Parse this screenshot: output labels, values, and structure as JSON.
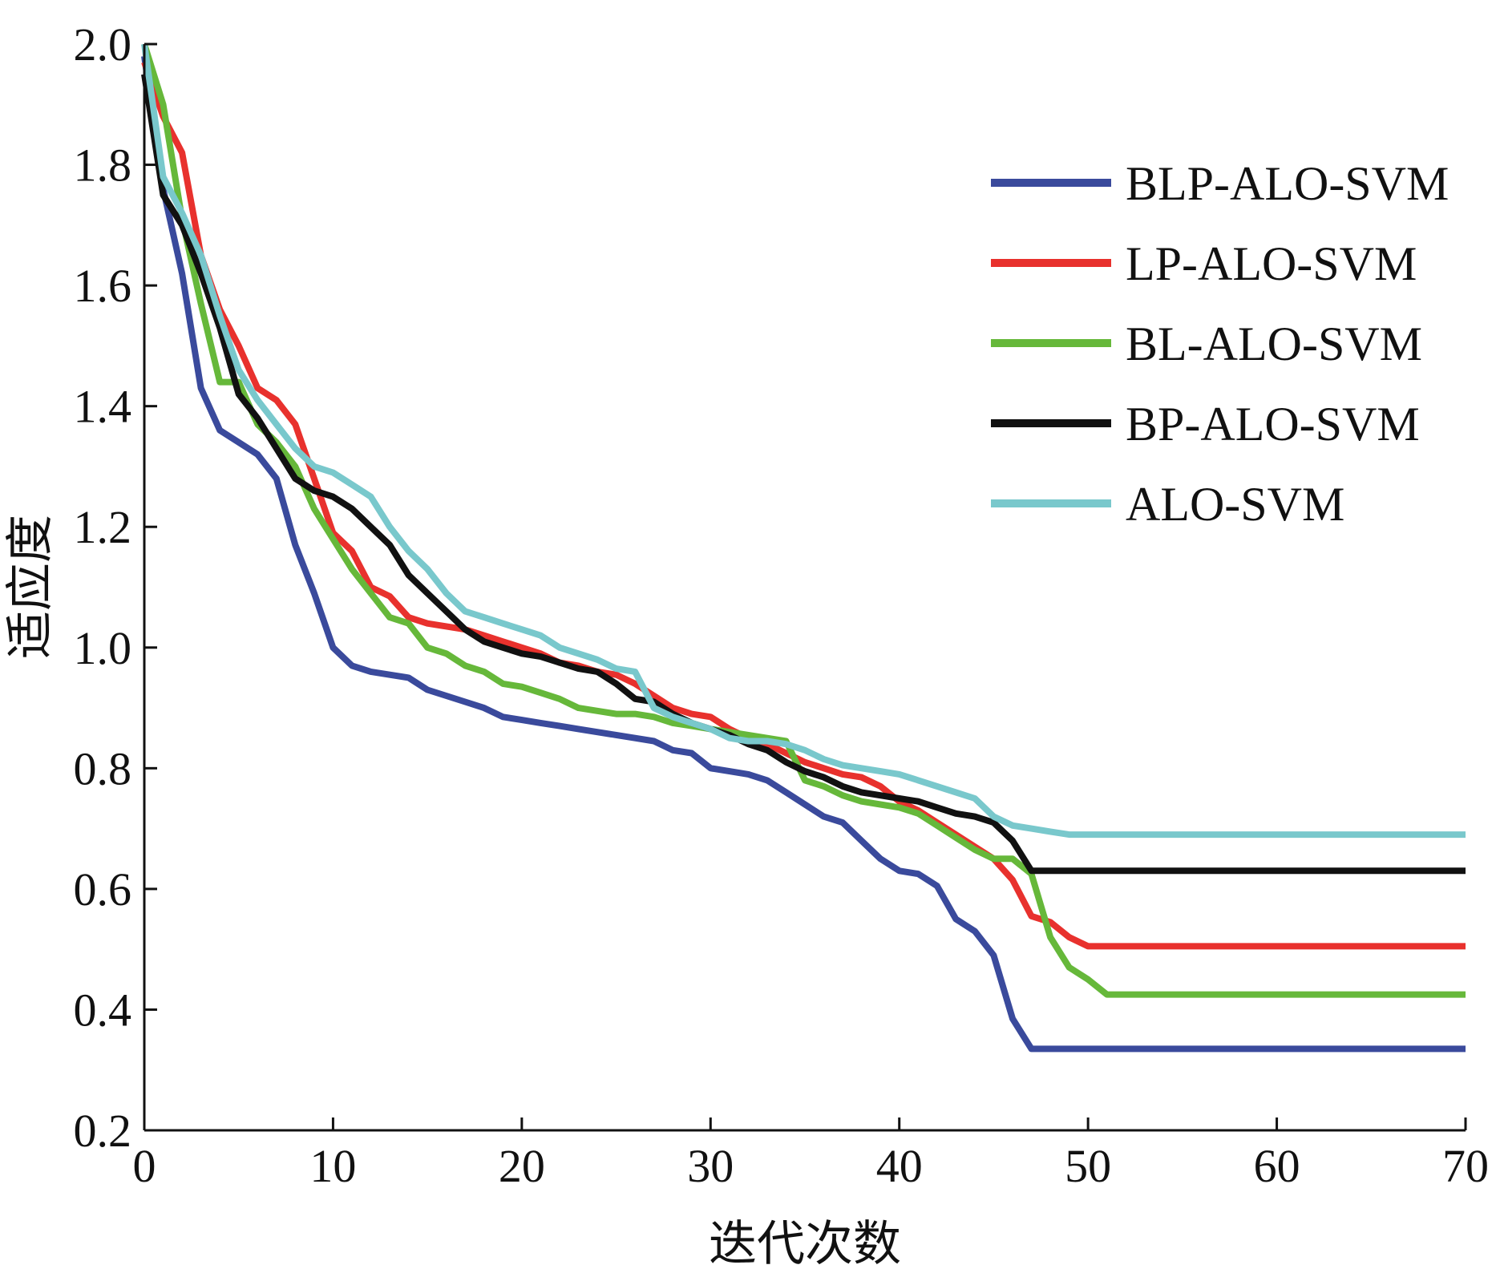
{
  "chart_data": {
    "type": "line",
    "title": "",
    "xlabel": "迭代次数",
    "ylabel": "适应度",
    "xlim": [
      0,
      70
    ],
    "ylim": [
      0.2,
      2.0
    ],
    "xticks": [
      0,
      10,
      20,
      30,
      40,
      50,
      60,
      70
    ],
    "xtick_labels": [
      "0",
      "10",
      "20",
      "30",
      "40",
      "50",
      "60",
      "70"
    ],
    "yticks": [
      0.2,
      0.4,
      0.6,
      0.8,
      1.0,
      1.2,
      1.4,
      1.6,
      1.8,
      2.0
    ],
    "ytick_labels": [
      "0.2",
      "0.4",
      "0.6",
      "0.8",
      "1.0",
      "1.2",
      "1.4",
      "1.6",
      "1.8",
      "2.0"
    ],
    "grid": false,
    "legend_position": "top-right",
    "series": [
      {
        "name": "BLP-ALO-SVM",
        "color": "#3a4a9c",
        "points": [
          [
            0,
            1.98
          ],
          [
            1,
            1.76
          ],
          [
            2,
            1.62
          ],
          [
            3,
            1.43
          ],
          [
            4,
            1.36
          ],
          [
            5,
            1.34
          ],
          [
            6,
            1.32
          ],
          [
            7,
            1.28
          ],
          [
            8,
            1.17
          ],
          [
            9,
            1.09
          ],
          [
            10,
            1.0
          ],
          [
            11,
            0.97
          ],
          [
            12,
            0.96
          ],
          [
            13,
            0.955
          ],
          [
            14,
            0.95
          ],
          [
            15,
            0.93
          ],
          [
            16,
            0.92
          ],
          [
            17,
            0.91
          ],
          [
            18,
            0.9
          ],
          [
            19,
            0.885
          ],
          [
            20,
            0.88
          ],
          [
            21,
            0.875
          ],
          [
            22,
            0.87
          ],
          [
            23,
            0.865
          ],
          [
            24,
            0.86
          ],
          [
            25,
            0.855
          ],
          [
            26,
            0.85
          ],
          [
            27,
            0.845
          ],
          [
            28,
            0.83
          ],
          [
            29,
            0.825
          ],
          [
            30,
            0.8
          ],
          [
            31,
            0.795
          ],
          [
            32,
            0.79
          ],
          [
            33,
            0.78
          ],
          [
            34,
            0.76
          ],
          [
            35,
            0.74
          ],
          [
            36,
            0.72
          ],
          [
            37,
            0.71
          ],
          [
            38,
            0.68
          ],
          [
            39,
            0.65
          ],
          [
            40,
            0.63
          ],
          [
            41,
            0.625
          ],
          [
            42,
            0.605
          ],
          [
            43,
            0.55
          ],
          [
            44,
            0.53
          ],
          [
            45,
            0.49
          ],
          [
            46,
            0.385
          ],
          [
            47,
            0.335
          ],
          [
            70,
            0.335
          ]
        ]
      },
      {
        "name": "LP-ALO-SVM",
        "color": "#e8312d",
        "points": [
          [
            0,
            1.97
          ],
          [
            1,
            1.88
          ],
          [
            2,
            1.82
          ],
          [
            3,
            1.65
          ],
          [
            4,
            1.56
          ],
          [
            5,
            1.5
          ],
          [
            6,
            1.43
          ],
          [
            7,
            1.41
          ],
          [
            8,
            1.37
          ],
          [
            9,
            1.28
          ],
          [
            10,
            1.19
          ],
          [
            11,
            1.16
          ],
          [
            12,
            1.1
          ],
          [
            13,
            1.085
          ],
          [
            14,
            1.05
          ],
          [
            15,
            1.04
          ],
          [
            16,
            1.035
          ],
          [
            17,
            1.03
          ],
          [
            18,
            1.02
          ],
          [
            19,
            1.01
          ],
          [
            20,
            1.0
          ],
          [
            21,
            0.99
          ],
          [
            22,
            0.975
          ],
          [
            23,
            0.97
          ],
          [
            24,
            0.96
          ],
          [
            25,
            0.955
          ],
          [
            26,
            0.94
          ],
          [
            27,
            0.92
          ],
          [
            28,
            0.9
          ],
          [
            29,
            0.89
          ],
          [
            30,
            0.885
          ],
          [
            31,
            0.865
          ],
          [
            32,
            0.85
          ],
          [
            33,
            0.84
          ],
          [
            34,
            0.825
          ],
          [
            35,
            0.81
          ],
          [
            36,
            0.8
          ],
          [
            37,
            0.79
          ],
          [
            38,
            0.785
          ],
          [
            39,
            0.77
          ],
          [
            40,
            0.745
          ],
          [
            41,
            0.73
          ],
          [
            42,
            0.71
          ],
          [
            43,
            0.69
          ],
          [
            44,
            0.67
          ],
          [
            45,
            0.65
          ],
          [
            46,
            0.615
          ],
          [
            47,
            0.555
          ],
          [
            48,
            0.545
          ],
          [
            49,
            0.52
          ],
          [
            50,
            0.505
          ],
          [
            70,
            0.505
          ]
        ]
      },
      {
        "name": "BL-ALO-SVM",
        "color": "#66b83a",
        "points": [
          [
            0,
            2.0
          ],
          [
            1,
            1.9
          ],
          [
            2,
            1.71
          ],
          [
            3,
            1.57
          ],
          [
            4,
            1.44
          ],
          [
            5,
            1.44
          ],
          [
            6,
            1.37
          ],
          [
            7,
            1.34
          ],
          [
            8,
            1.3
          ],
          [
            9,
            1.23
          ],
          [
            10,
            1.18
          ],
          [
            11,
            1.13
          ],
          [
            12,
            1.09
          ],
          [
            13,
            1.05
          ],
          [
            14,
            1.04
          ],
          [
            15,
            1.0
          ],
          [
            16,
            0.99
          ],
          [
            17,
            0.97
          ],
          [
            18,
            0.96
          ],
          [
            19,
            0.94
          ],
          [
            20,
            0.935
          ],
          [
            21,
            0.925
          ],
          [
            22,
            0.915
          ],
          [
            23,
            0.9
          ],
          [
            24,
            0.895
          ],
          [
            25,
            0.89
          ],
          [
            26,
            0.89
          ],
          [
            27,
            0.885
          ],
          [
            28,
            0.875
          ],
          [
            29,
            0.87
          ],
          [
            30,
            0.865
          ],
          [
            31,
            0.86
          ],
          [
            32,
            0.855
          ],
          [
            33,
            0.85
          ],
          [
            34,
            0.845
          ],
          [
            35,
            0.78
          ],
          [
            36,
            0.77
          ],
          [
            37,
            0.755
          ],
          [
            38,
            0.745
          ],
          [
            39,
            0.74
          ],
          [
            40,
            0.735
          ],
          [
            41,
            0.725
          ],
          [
            42,
            0.705
          ],
          [
            43,
            0.685
          ],
          [
            44,
            0.665
          ],
          [
            45,
            0.65
          ],
          [
            46,
            0.65
          ],
          [
            47,
            0.625
          ],
          [
            48,
            0.52
          ],
          [
            49,
            0.47
          ],
          [
            50,
            0.45
          ],
          [
            51,
            0.425
          ],
          [
            70,
            0.425
          ]
        ]
      },
      {
        "name": "BP-ALO-SVM",
        "color": "#111111",
        "points": [
          [
            0,
            1.95
          ],
          [
            1,
            1.75
          ],
          [
            2,
            1.7
          ],
          [
            3,
            1.62
          ],
          [
            4,
            1.53
          ],
          [
            5,
            1.42
          ],
          [
            6,
            1.38
          ],
          [
            7,
            1.33
          ],
          [
            8,
            1.28
          ],
          [
            9,
            1.26
          ],
          [
            10,
            1.25
          ],
          [
            11,
            1.23
          ],
          [
            12,
            1.2
          ],
          [
            13,
            1.17
          ],
          [
            14,
            1.12
          ],
          [
            15,
            1.09
          ],
          [
            16,
            1.06
          ],
          [
            17,
            1.03
          ],
          [
            18,
            1.01
          ],
          [
            19,
            1.0
          ],
          [
            20,
            0.99
          ],
          [
            21,
            0.985
          ],
          [
            22,
            0.975
          ],
          [
            23,
            0.965
          ],
          [
            24,
            0.96
          ],
          [
            25,
            0.94
          ],
          [
            26,
            0.915
          ],
          [
            27,
            0.91
          ],
          [
            28,
            0.89
          ],
          [
            29,
            0.875
          ],
          [
            30,
            0.865
          ],
          [
            31,
            0.855
          ],
          [
            32,
            0.84
          ],
          [
            33,
            0.83
          ],
          [
            34,
            0.81
          ],
          [
            35,
            0.795
          ],
          [
            36,
            0.785
          ],
          [
            37,
            0.77
          ],
          [
            38,
            0.76
          ],
          [
            39,
            0.755
          ],
          [
            40,
            0.75
          ],
          [
            41,
            0.745
          ],
          [
            42,
            0.735
          ],
          [
            43,
            0.725
          ],
          [
            44,
            0.72
          ],
          [
            45,
            0.71
          ],
          [
            46,
            0.68
          ],
          [
            47,
            0.63
          ],
          [
            70,
            0.63
          ]
        ]
      },
      {
        "name": "ALO-SVM",
        "color": "#79c8cc",
        "points": [
          [
            0,
            2.0
          ],
          [
            1,
            1.78
          ],
          [
            2,
            1.72
          ],
          [
            3,
            1.65
          ],
          [
            4,
            1.55
          ],
          [
            5,
            1.46
          ],
          [
            6,
            1.41
          ],
          [
            7,
            1.37
          ],
          [
            8,
            1.33
          ],
          [
            9,
            1.3
          ],
          [
            10,
            1.29
          ],
          [
            11,
            1.27
          ],
          [
            12,
            1.25
          ],
          [
            13,
            1.2
          ],
          [
            14,
            1.16
          ],
          [
            15,
            1.13
          ],
          [
            16,
            1.09
          ],
          [
            17,
            1.06
          ],
          [
            18,
            1.05
          ],
          [
            19,
            1.04
          ],
          [
            20,
            1.03
          ],
          [
            21,
            1.02
          ],
          [
            22,
            1.0
          ],
          [
            23,
            0.99
          ],
          [
            24,
            0.98
          ],
          [
            25,
            0.965
          ],
          [
            26,
            0.96
          ],
          [
            27,
            0.9
          ],
          [
            28,
            0.885
          ],
          [
            29,
            0.875
          ],
          [
            30,
            0.865
          ],
          [
            31,
            0.85
          ],
          [
            32,
            0.845
          ],
          [
            33,
            0.845
          ],
          [
            34,
            0.84
          ],
          [
            35,
            0.83
          ],
          [
            36,
            0.815
          ],
          [
            37,
            0.805
          ],
          [
            38,
            0.8
          ],
          [
            39,
            0.795
          ],
          [
            40,
            0.79
          ],
          [
            41,
            0.78
          ],
          [
            42,
            0.77
          ],
          [
            43,
            0.76
          ],
          [
            44,
            0.75
          ],
          [
            45,
            0.72
          ],
          [
            46,
            0.705
          ],
          [
            47,
            0.7
          ],
          [
            48,
            0.695
          ],
          [
            49,
            0.69
          ],
          [
            50,
            0.69
          ],
          [
            70,
            0.69
          ]
        ]
      }
    ]
  }
}
